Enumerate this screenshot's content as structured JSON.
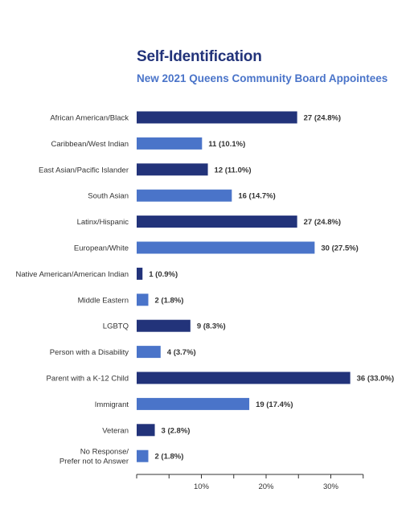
{
  "chart_data": {
    "type": "bar",
    "orientation": "horizontal",
    "title": "Self-Identification",
    "subtitle": "New 2021 Queens Community Board Appointees",
    "categories": [
      "African American/Black",
      "Caribbean/West Indian",
      "East Asian/Pacific Islander",
      "South Asian",
      "Latinx/Hispanic",
      "European/White",
      "Native American/American Indian",
      "Middle Eastern",
      "LGBTQ",
      "Person with a Disability",
      "Parent with a K-12 Child",
      "Immigrant",
      "Veteran",
      "No Response/\nPrefer not to Answer"
    ],
    "values": [
      27,
      11,
      12,
      16,
      27,
      30,
      1,
      2,
      9,
      4,
      36,
      19,
      3,
      2
    ],
    "percents": [
      24.8,
      10.1,
      11.0,
      14.7,
      24.8,
      27.5,
      0.9,
      1.8,
      8.3,
      3.7,
      33.0,
      17.4,
      2.8,
      1.8
    ],
    "value_labels": [
      "27 (24.8%)",
      "11 (10.1%)",
      "12 (11.0%)",
      "16 (14.7%)",
      "27 (24.8%)",
      "30 (27.5%)",
      "1 (0.9%)",
      "2 (1.8%)",
      "9 (8.3%)",
      "4 (3.7%)",
      "36 (33.0%)",
      "19 (17.4%)",
      "3 (2.8%)",
      "2 (1.8%)"
    ],
    "x_ticks": [
      10,
      20,
      30
    ],
    "x_tick_labels": [
      "10%",
      "20%",
      "30%"
    ],
    "xlim": [
      0,
      35
    ],
    "grid": false,
    "colors": {
      "dark": "#22337a",
      "light": "#4a74c9"
    },
    "bar_colors": [
      "dark",
      "light",
      "dark",
      "light",
      "dark",
      "light",
      "dark",
      "light",
      "dark",
      "light",
      "dark",
      "light",
      "dark",
      "light"
    ]
  }
}
